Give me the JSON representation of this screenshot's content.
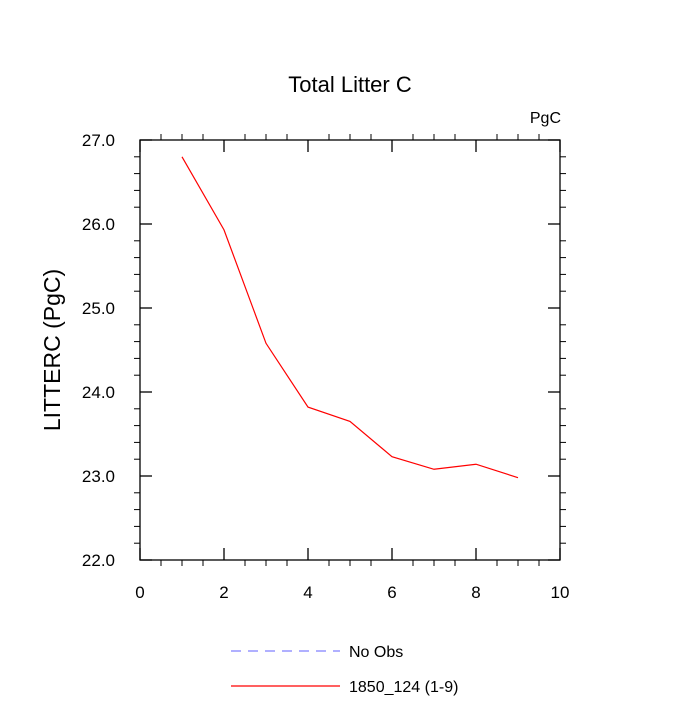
{
  "chart_data": {
    "type": "line",
    "title": "Total Litter C",
    "units_label": "PgC",
    "ylabel": "LITTERC  (PgC)",
    "xlabel": "",
    "xlim": [
      0,
      10
    ],
    "ylim": [
      22.0,
      27.0
    ],
    "x_ticks": [
      0,
      2,
      4,
      6,
      8,
      10
    ],
    "x_tick_labels": [
      "0",
      "2",
      "4",
      "6",
      "8",
      "10"
    ],
    "y_ticks": [
      22.0,
      23.0,
      24.0,
      25.0,
      26.0,
      27.0
    ],
    "y_tick_labels": [
      "22.0",
      "23.0",
      "24.0",
      "25.0",
      "26.0",
      "27.0"
    ],
    "grid": false,
    "legend_position": "bottom",
    "series": [
      {
        "name": "No Obs",
        "color": "#8080ff",
        "dash": "dashed",
        "x": [],
        "y": []
      },
      {
        "name": "1850_124 (1-9)",
        "color": "#ff0000",
        "dash": "solid",
        "x": [
          1,
          2,
          3,
          4,
          5,
          6,
          7,
          8,
          9
        ],
        "y": [
          26.8,
          25.93,
          24.58,
          23.82,
          23.65,
          23.23,
          23.08,
          23.14,
          22.98
        ]
      }
    ]
  }
}
